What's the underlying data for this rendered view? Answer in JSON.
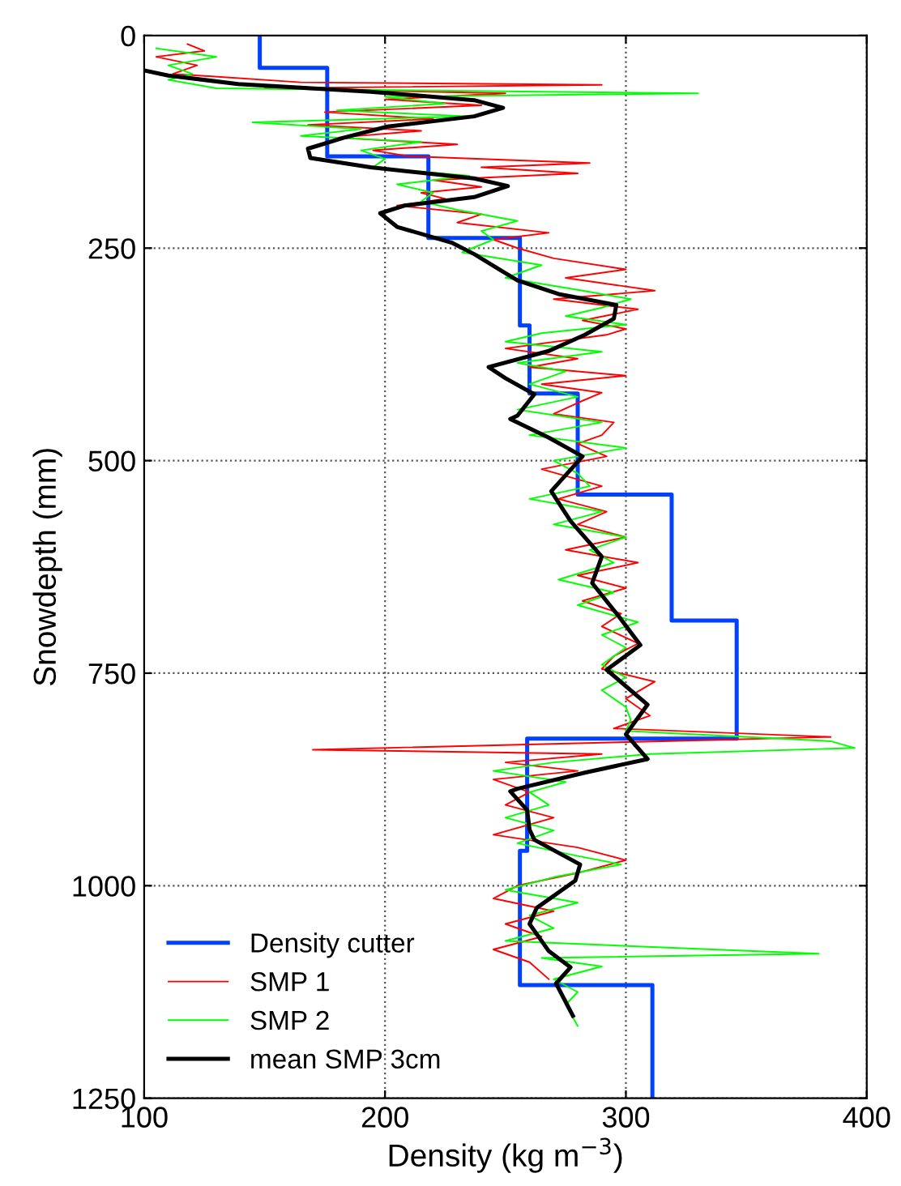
{
  "chart_data": {
    "type": "line",
    "xlabel": "Density (kg m$^{−3}$)",
    "ylabel": "Snowdepth (mm)",
    "xlim": [
      100,
      400
    ],
    "xticks": [
      100,
      200,
      300,
      400
    ],
    "ylim": [
      1250,
      0
    ],
    "yticks": [
      0,
      250,
      500,
      750,
      1000,
      1250
    ],
    "grid": true,
    "legend": "bottom left",
    "line_style": "solid",
    "marker": "none",
    "series": [
      {
        "name": "Density cutter",
        "color": "#0040ff",
        "x": [
          148,
          148,
          176,
          176,
          218,
          218,
          256,
          256,
          260,
          260,
          280,
          280,
          319,
          319,
          346,
          346,
          259,
          259,
          256,
          256,
          311,
          311
        ],
        "values": [
          0,
          38,
          38,
          142,
          142,
          238,
          238,
          341,
          341,
          421,
          421,
          540,
          540,
          688,
          688,
          827,
          827,
          959,
          959,
          1117,
          1117,
          1250
        ]
      },
      {
        "name": "SMP 1",
        "color": "#ff0000",
        "x": [
          118,
          125,
          105,
          122,
          112,
          165,
          290,
          150,
          250,
          200,
          240,
          175,
          220,
          168,
          215,
          180,
          230,
          195,
          210,
          285,
          240,
          280,
          220,
          240,
          215,
          225,
          205,
          240,
          230,
          268,
          245,
          255,
          270,
          300,
          275,
          312,
          270,
          305,
          282,
          300,
          292,
          250,
          280,
          260,
          300,
          265,
          290,
          280,
          270,
          295,
          290,
          280,
          292,
          265,
          290,
          272,
          292,
          280,
          300,
          275,
          305,
          280,
          300,
          282,
          298,
          290,
          305,
          295,
          290,
          312,
          300,
          310,
          295,
          385,
          315,
          170,
          290,
          250,
          280,
          245,
          260,
          250,
          270,
          245,
          280,
          300,
          280,
          255,
          245,
          270,
          250,
          265,
          245,
          260,
          268
        ],
        "values": [
          10,
          18,
          25,
          35,
          45,
          55,
          58,
          62,
          68,
          75,
          82,
          90,
          98,
          105,
          112,
          120,
          128,
          135,
          142,
          150,
          155,
          162,
          170,
          178,
          185,
          192,
          200,
          210,
          220,
          232,
          240,
          250,
          262,
          275,
          285,
          300,
          310,
          322,
          335,
          345,
          352,
          368,
          380,
          390,
          400,
          410,
          420,
          432,
          445,
          455,
          470,
          480,
          495,
          510,
          530,
          545,
          560,
          575,
          590,
          605,
          620,
          635,
          650,
          665,
          680,
          695,
          715,
          730,
          745,
          760,
          780,
          800,
          815,
          825,
          830,
          840,
          845,
          855,
          865,
          875,
          890,
          905,
          920,
          940,
          955,
          970,
          985,
          1000,
          1015,
          1030,
          1045,
          1060,
          1075,
          1090,
          1110
        ]
      },
      {
        "name": "SMP 2",
        "color": "#00ff00",
        "x": [
          105,
          130,
          110,
          120,
          110,
          130,
          330,
          200,
          225,
          180,
          235,
          145,
          190,
          165,
          215,
          190,
          200,
          195,
          235,
          205,
          220,
          215,
          230,
          255,
          240,
          245,
          232,
          265,
          250,
          282,
          302,
          290,
          275,
          300,
          265,
          250,
          290,
          255,
          275,
          260,
          280,
          255,
          290,
          260,
          300,
          270,
          280,
          285,
          260,
          290,
          270,
          300,
          285,
          295,
          272,
          295,
          280,
          305,
          290,
          300,
          290,
          300,
          290,
          300,
          302,
          300,
          385,
          395,
          310,
          270,
          245,
          275,
          260,
          268,
          250,
          270,
          255,
          280,
          298,
          270,
          250,
          280,
          260,
          270,
          250,
          380,
          265,
          290,
          270,
          280,
          275,
          278,
          280
        ],
        "values": [
          15,
          25,
          35,
          45,
          52,
          62,
          68,
          72,
          80,
          88,
          95,
          102,
          110,
          118,
          125,
          135,
          145,
          155,
          165,
          175,
          185,
          195,
          205,
          218,
          230,
          240,
          255,
          270,
          285,
          300,
          310,
          320,
          330,
          340,
          350,
          360,
          372,
          385,
          395,
          410,
          425,
          440,
          455,
          470,
          485,
          500,
          515,
          530,
          545,
          560,
          575,
          590,
          605,
          620,
          640,
          655,
          670,
          690,
          705,
          720,
          740,
          755,
          770,
          790,
          805,
          818,
          830,
          838,
          845,
          855,
          865,
          878,
          890,
          905,
          920,
          935,
          950,
          965,
          975,
          990,
          1005,
          1020,
          1035,
          1050,
          1065,
          1080,
          1085,
          1095,
          1110,
          1125,
          1140,
          1155,
          1165
        ]
      },
      {
        "name": "mean SMP 3cm",
        "color": "#000000",
        "x": [
          100,
          110,
          139,
          194,
          237,
          249,
          237,
          201,
          183,
          168,
          169,
          194,
          237,
          251,
          237,
          208,
          198,
          205,
          228,
          237,
          248,
          255,
          272,
          296,
          295,
          283,
          268,
          243,
          250,
          262,
          255,
          252,
          268,
          282,
          269,
          277,
          290,
          286,
          297,
          306,
          292,
          309,
          300,
          309,
          283,
          255,
          252,
          259,
          260,
          262,
          281,
          279,
          263,
          260,
          268,
          277,
          271,
          278
        ],
        "values": [
          41,
          47,
          57,
          66,
          76,
          85,
          95,
          107,
          120,
          133,
          144,
          155,
          168,
          177,
          190,
          200,
          209,
          225,
          244,
          257,
          276,
          288,
          304,
          317,
          333,
          352,
          371,
          390,
          403,
          422,
          447,
          451,
          473,
          495,
          536,
          571,
          613,
          644,
          683,
          717,
          746,
          787,
          822,
          851,
          867,
          886,
          889,
          911,
          934,
          946,
          975,
          994,
          1026,
          1045,
          1077,
          1096,
          1115,
          1153
        ]
      }
    ]
  }
}
